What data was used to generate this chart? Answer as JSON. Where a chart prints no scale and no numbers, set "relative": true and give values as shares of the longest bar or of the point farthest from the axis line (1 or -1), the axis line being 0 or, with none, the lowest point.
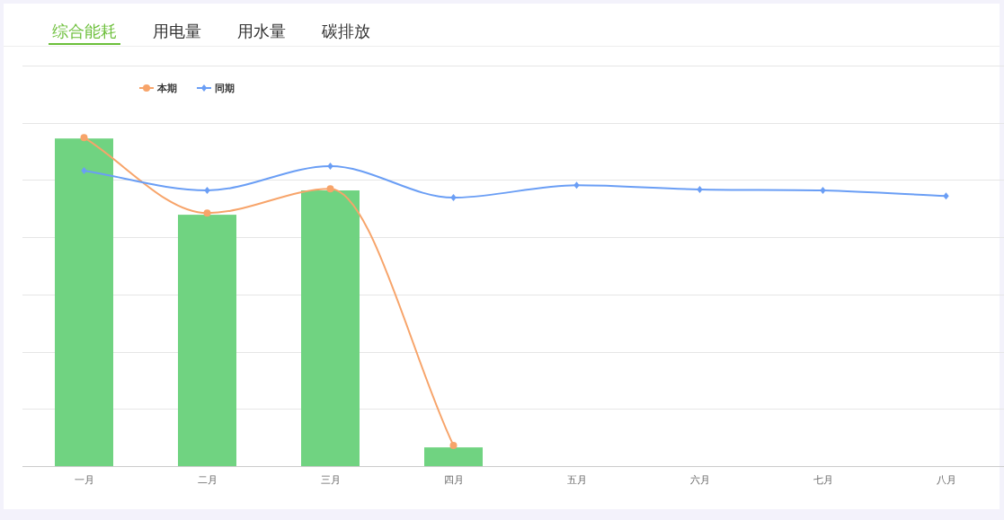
{
  "chart_data": {
    "type": "bar",
    "relative": true,
    "title": "综合能耗",
    "annotations": [
      "用电量",
      "用水量",
      "碳排放"
    ],
    "categories": [
      "一月",
      "二月",
      "三月",
      "四月",
      "五月",
      "六月",
      "七月",
      "八月"
    ],
    "grid": "y",
    "legend": "top left",
    "series": [
      {
        "color": "#70d381",
        "values": [
          0.997,
          0.765,
          0.839,
          0.057,
          null,
          null,
          null,
          null
        ]
      },
      {
        "type": "line",
        "name": "本期",
        "color": "#f7a46a",
        "marker": "circle",
        "values": [
          1.0,
          0.77,
          0.844,
          0.063,
          null,
          null,
          null,
          null
        ]
      },
      {
        "type": "line",
        "name": "同期",
        "color": "#6a9ef5",
        "marker": "diamond",
        "values": [
          0.899,
          0.839,
          0.913,
          0.817,
          0.855,
          0.842,
          0.839,
          0.822
        ]
      }
    ]
  }
}
